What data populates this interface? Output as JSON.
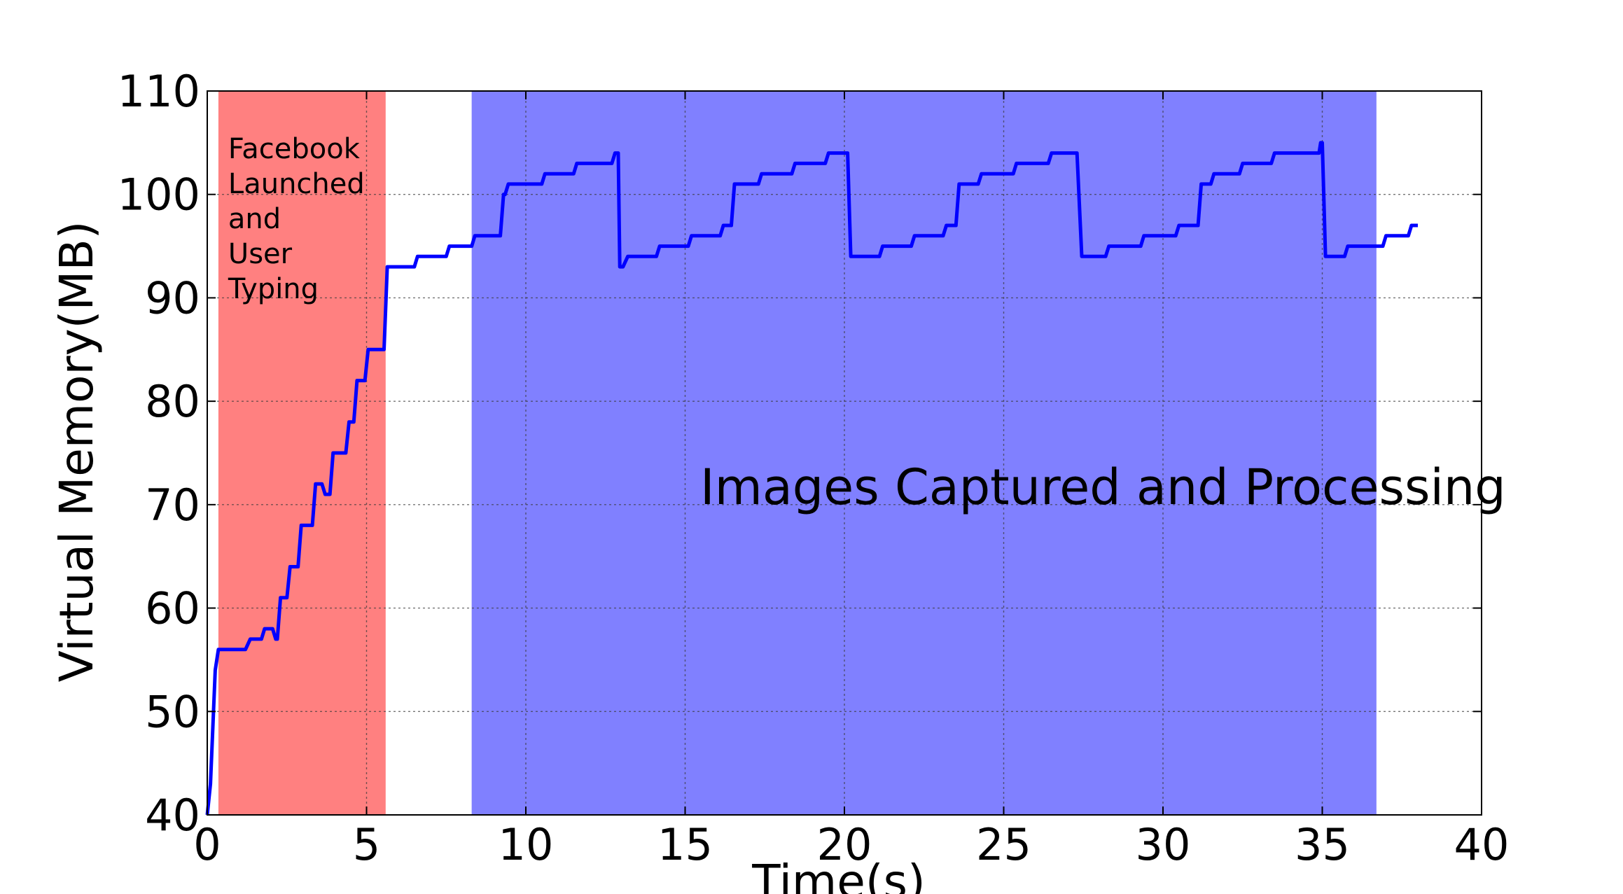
{
  "chart_data": {
    "type": "line",
    "title": "",
    "xlabel": "Time(s)",
    "ylabel": "Virtual Memory(MB)",
    "xlim": [
      0,
      40
    ],
    "ylim": [
      40,
      110
    ],
    "xticks": [
      "0",
      "5",
      "10",
      "15",
      "20",
      "25",
      "30",
      "35",
      "40"
    ],
    "yticks": [
      "40",
      "50",
      "60",
      "70",
      "80",
      "90",
      "100",
      "110"
    ],
    "grid": true,
    "line_color": "#0000ff",
    "shaded_regions": [
      {
        "x_start": 0.35,
        "x_end": 5.6,
        "color": "#ff8080",
        "label_lines": [
          "Facebook",
          "Launched",
          "and",
          "User",
          "Typing"
        ]
      },
      {
        "x_start": 8.3,
        "x_end": 36.7,
        "color": "#8080ff",
        "label_lines": [
          "Images Captured and Processing"
        ]
      }
    ],
    "series": [
      {
        "x": [
          0,
          0.1,
          0.25,
          0.35,
          1.2,
          1.35,
          1.7,
          1.8,
          2.05,
          2.15,
          2.2,
          2.3,
          2.5,
          2.6,
          2.85,
          2.95,
          3.3,
          3.4,
          3.6,
          3.7,
          3.85,
          3.95,
          4.35,
          4.45,
          4.6,
          4.7,
          4.95,
          5.05,
          5.35,
          5.45,
          5.55,
          5.65,
          6.5,
          6.6,
          7.5,
          7.6,
          8.3,
          8.4,
          9.2,
          9.3,
          9.35,
          9.45,
          10.5,
          10.6,
          11.5,
          11.6,
          12.7,
          12.8,
          12.9,
          12.95,
          13.05,
          13.2,
          14.1,
          14.2,
          15.1,
          15.2,
          16.1,
          16.2,
          16.45,
          16.55,
          17.3,
          17.4,
          18.35,
          18.45,
          19.4,
          19.5,
          20.1,
          20.2,
          21.1,
          21.2,
          22.1,
          22.2,
          23.1,
          23.2,
          23.5,
          23.6,
          24.2,
          24.3,
          25.3,
          25.4,
          26.4,
          26.5,
          27.3,
          27.45,
          28.2,
          28.3,
          29.3,
          29.4,
          30.4,
          30.5,
          31.1,
          31.2,
          31.5,
          31.6,
          32.4,
          32.5,
          33.4,
          33.5,
          34.5,
          34.6,
          34.9,
          34.95,
          35.0,
          35.1,
          35.7,
          35.8,
          36.9,
          37.0,
          37.7,
          37.8,
          38.0
        ],
        "y": [
          40,
          43,
          54,
          56,
          56,
          57,
          57,
          58,
          58,
          57,
          57,
          61,
          61,
          64,
          64,
          68,
          68,
          72,
          72,
          71,
          71,
          75,
          75,
          78,
          78,
          82,
          82,
          85,
          85,
          85,
          85,
          93,
          93,
          94,
          94,
          95,
          95,
          96,
          96,
          100,
          100,
          101,
          101,
          102,
          102,
          103,
          103,
          104,
          104,
          93,
          93,
          94,
          94,
          95,
          95,
          96,
          96,
          97,
          97,
          101,
          101,
          102,
          102,
          103,
          103,
          104,
          104,
          94,
          94,
          95,
          95,
          96,
          96,
          97,
          97,
          101,
          101,
          102,
          102,
          103,
          103,
          104,
          104,
          94,
          94,
          95,
          95,
          96,
          96,
          97,
          97,
          101,
          101,
          102,
          102,
          103,
          103,
          104,
          104,
          104,
          104,
          105,
          105,
          94,
          94,
          95,
          95,
          96,
          96,
          97,
          97
        ]
      }
    ]
  }
}
